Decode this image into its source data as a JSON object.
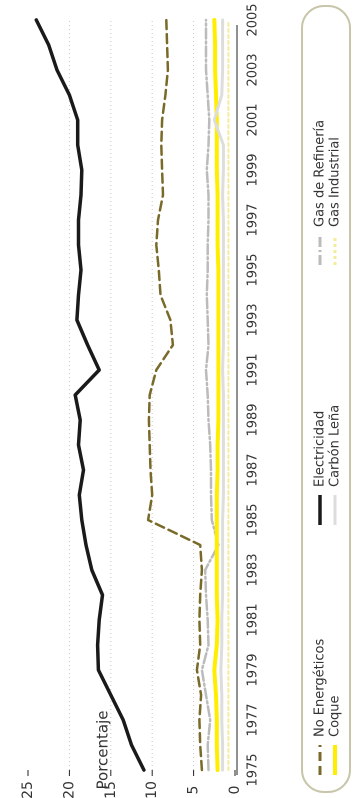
{
  "chart_data": {
    "type": "line",
    "ylabel": "Porcentaje",
    "xlabel": "",
    "ylim": [
      0,
      25
    ],
    "yticks": [
      0,
      5,
      10,
      15,
      20,
      25
    ],
    "xlim": [
      1975,
      2005
    ],
    "xticks": [
      "1975",
      "1977",
      "1979",
      "1981",
      "1983",
      "1985",
      "1987",
      "1989",
      "1991",
      "1993",
      "1995",
      "1997",
      "1999",
      "2001",
      "2003",
      "2005"
    ],
    "grid": "vertical dotted",
    "legend_position": "right",
    "x": [
      1975,
      1976,
      1977,
      1978,
      1979,
      1980,
      1981,
      1982,
      1983,
      1984,
      1985,
      1986,
      1987,
      1988,
      1989,
      1990,
      1991,
      1992,
      1993,
      1994,
      1995,
      1996,
      1997,
      1998,
      1999,
      2000,
      2001,
      2002,
      2003,
      2004,
      2005
    ],
    "series": [
      {
        "name": "No Energéticos",
        "color": "#7a6a2a",
        "dash": "9,5",
        "width": 2.5,
        "values": [
          4,
          4.2,
          4.3,
          4.1,
          4.6,
          4.2,
          4.3,
          4.2,
          4.0,
          4.2,
          10.5,
          10.0,
          10.2,
          10.3,
          10.4,
          10.3,
          9.5,
          7.5,
          7.8,
          9.0,
          9.2,
          9.5,
          9.3,
          8.7,
          8.8,
          8.9,
          8.8,
          8.4,
          8.1,
          8.2,
          8.3
        ]
      },
      {
        "name": "Electricidad",
        "color": "#1a1a1a",
        "dash": "",
        "width": 3.5,
        "values": [
          11,
          12.5,
          13.5,
          15.0,
          16.5,
          16.6,
          16.4,
          16.0,
          17.3,
          18.0,
          18.5,
          18.8,
          18.3,
          18.9,
          18.7,
          19.3,
          16.4,
          17.8,
          19.1,
          18.9,
          18.6,
          18.9,
          18.9,
          18.6,
          18.5,
          19.0,
          19.0,
          20.0,
          21.5,
          22.5,
          24
        ]
      },
      {
        "name": "Gas de Refinería",
        "color": "#bbbbbb",
        "dash": "10,3,2,3",
        "width": 2.5,
        "values": [
          3.2,
          3.3,
          3.0,
          3.5,
          4.0,
          3.2,
          3.3,
          3.5,
          3.6,
          2.0,
          2.8,
          2.9,
          2.9,
          3.0,
          3.2,
          3.3,
          3.5,
          3.2,
          3.3,
          3.4,
          3.3,
          3.3,
          3.2,
          3.2,
          3.4,
          3.2,
          3.1,
          3.3,
          3.5,
          3.5,
          3.5
        ]
      },
      {
        "name": "Coque",
        "color": "#ffee00",
        "dash": "",
        "width": 4,
        "values": [
          2.1,
          2.2,
          2.2,
          2.3,
          2.5,
          2.2,
          2.1,
          2.2,
          2.2,
          2.2,
          2.2,
          2.2,
          2.1,
          2.1,
          2.0,
          2.0,
          2.0,
          2.0,
          2.0,
          2.0,
          2.0,
          2.1,
          2.1,
          2.1,
          2.2,
          2.2,
          2.2,
          2.3,
          2.4,
          2.4,
          2.5
        ]
      },
      {
        "name": "Carbón Leña",
        "color": "#dddddd",
        "dash": "",
        "width": 3,
        "values": [
          1.5,
          1.5,
          1.6,
          1.6,
          1.7,
          1.6,
          1.6,
          1.5,
          1.5,
          1.5,
          1.5,
          1.4,
          1.4,
          1.4,
          1.4,
          1.4,
          1.5,
          1.4,
          1.4,
          1.4,
          1.4,
          1.4,
          1.4,
          1.5,
          1.4,
          1.4,
          2.5,
          1.6,
          1.5,
          1.5,
          1.5
        ]
      },
      {
        "name": "Gas Industrial",
        "color": "#f5ec9a",
        "dash": "3,3",
        "width": 2,
        "values": [
          0.8,
          0.8,
          0.8,
          0.8,
          0.8,
          0.8,
          0.8,
          0.8,
          0.8,
          0.8,
          0.8,
          0.8,
          0.8,
          0.8,
          0.8,
          0.8,
          0.8,
          0.8,
          0.8,
          0.8,
          0.8,
          0.8,
          0.8,
          0.8,
          0.8,
          0.8,
          0.8,
          0.8,
          0.8,
          0.8,
          0.8
        ]
      }
    ],
    "legend": [
      {
        "label": "No Energéticos",
        "series": 0
      },
      {
        "label": "Coque",
        "series": 3
      },
      {
        "label": "Electricidad",
        "series": 1
      },
      {
        "label": "Carbón Leña",
        "series": 4
      },
      {
        "label": "Gas de Refinería",
        "series": 2
      },
      {
        "label": "Gas Industrial",
        "series": 5
      }
    ]
  }
}
